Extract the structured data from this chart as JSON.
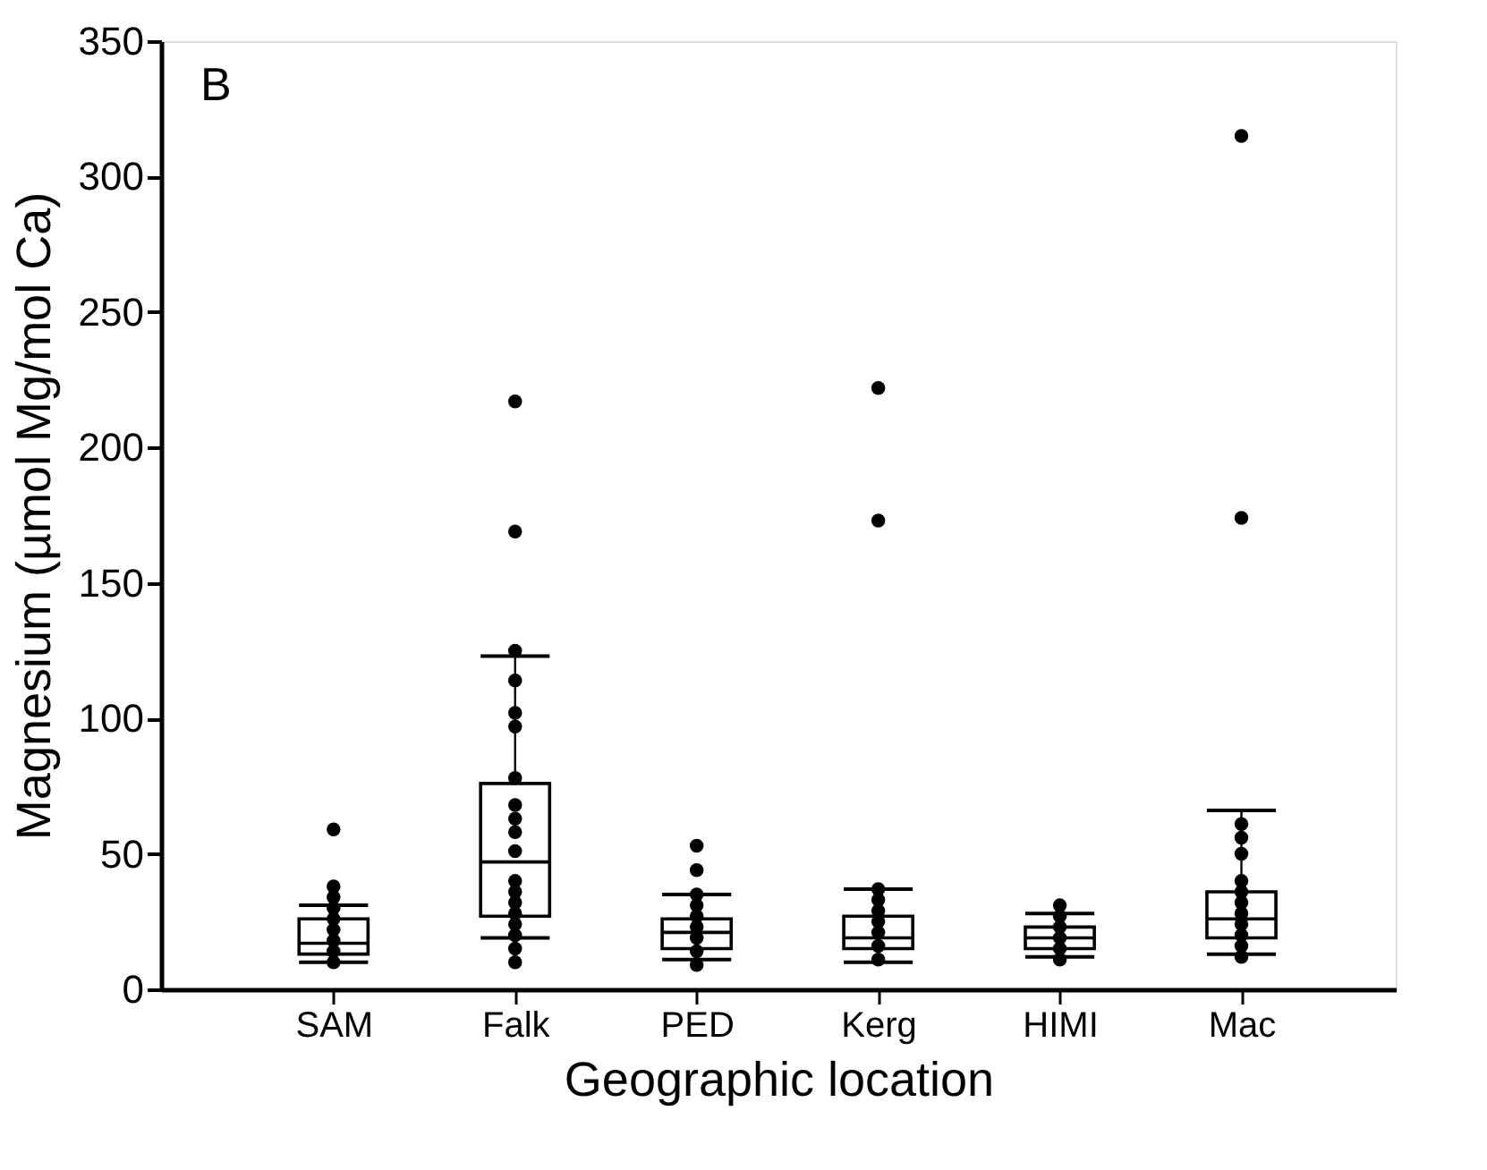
{
  "chart_data": {
    "type": "box",
    "xlabel": "Geographic location",
    "ylabel": "Magnesium (µmol Mg/mol Ca)",
    "annotations": [
      "B"
    ],
    "categories": [
      "SAM",
      "Falk",
      "PED",
      "Kerg",
      "HIMI",
      "Mac"
    ],
    "boxes": [
      {
        "low": 10,
        "q1": 13,
        "median": 17,
        "q3": 26,
        "high": 31
      },
      {
        "low": 19,
        "q1": 27,
        "median": 47,
        "q3": 76,
        "high": 123
      },
      {
        "low": 11,
        "q1": 15,
        "median": 21,
        "q3": 26,
        "high": 35
      },
      {
        "low": 10,
        "q1": 15,
        "median": 19,
        "q3": 27,
        "high": 37
      },
      {
        "low": 12,
        "q1": 15,
        "median": 19,
        "q3": 23,
        "high": 28
      },
      {
        "low": 13,
        "q1": 19,
        "median": 26,
        "q3": 36,
        "high": 66
      }
    ],
    "color": "#000000",
    "series": [
      {
        "type": "scatter",
        "color": "#000000",
        "marker": "circle",
        "x": [
          "SAM",
          "SAM",
          "SAM",
          "SAM",
          "SAM",
          "SAM",
          "SAM",
          "SAM",
          "SAM"
        ],
        "values": [
          59,
          38,
          34,
          30,
          26,
          22,
          18,
          14,
          10
        ]
      },
      {
        "type": "scatter",
        "color": "#000000",
        "marker": "circle",
        "x": [
          "Falk",
          "Falk",
          "Falk",
          "Falk",
          "Falk",
          "Falk",
          "Falk",
          "Falk",
          "Falk",
          "Falk",
          "Falk",
          "Falk",
          "Falk",
          "Falk",
          "Falk",
          "Falk",
          "Falk",
          "Falk",
          "Falk"
        ],
        "values": [
          217,
          169,
          125,
          114,
          102,
          97,
          78,
          68,
          63,
          58,
          51,
          40,
          36,
          32,
          28,
          24,
          20,
          15,
          10
        ]
      },
      {
        "type": "scatter",
        "color": "#000000",
        "marker": "circle",
        "x": [
          "PED",
          "PED",
          "PED",
          "PED",
          "PED",
          "PED",
          "PED",
          "PED",
          "PED"
        ],
        "values": [
          53,
          44,
          35,
          31,
          27,
          23,
          19,
          14,
          9
        ]
      },
      {
        "type": "scatter",
        "color": "#000000",
        "marker": "circle",
        "x": [
          "Kerg",
          "Kerg",
          "Kerg",
          "Kerg",
          "Kerg",
          "Kerg",
          "Kerg",
          "Kerg",
          "Kerg"
        ],
        "values": [
          222,
          173,
          37,
          33,
          29,
          25,
          21,
          16,
          11
        ]
      },
      {
        "type": "scatter",
        "color": "#000000",
        "marker": "circle",
        "x": [
          "HIMI",
          "HIMI",
          "HIMI",
          "HIMI",
          "HIMI",
          "HIMI"
        ],
        "values": [
          31,
          27,
          23,
          19,
          15,
          11
        ]
      },
      {
        "type": "scatter",
        "color": "#000000",
        "marker": "circle",
        "x": [
          "Mac",
          "Mac",
          "Mac",
          "Mac",
          "Mac",
          "Mac",
          "Mac",
          "Mac",
          "Mac",
          "Mac",
          "Mac",
          "Mac",
          "Mac"
        ],
        "values": [
          315,
          174,
          61,
          56,
          50,
          40,
          36,
          32,
          28,
          24,
          20,
          16,
          12
        ]
      }
    ],
    "ylim": [
      0,
      350
    ],
    "yticks": [
      0,
      50,
      100,
      150,
      200,
      250,
      300,
      350
    ],
    "grid": false
  }
}
